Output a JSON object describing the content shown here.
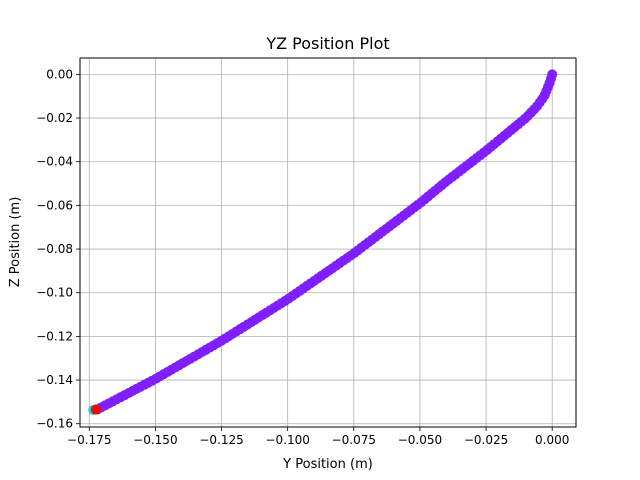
{
  "chart_data": {
    "type": "scatter",
    "title": "YZ Position Plot",
    "xlabel": "Y Position (m)",
    "ylabel": "Z Position (m)",
    "xlim": [
      -0.1785,
      0.009
    ],
    "ylim": [
      -0.1615,
      0.0075
    ],
    "xticks": [
      -0.175,
      -0.15,
      -0.125,
      -0.1,
      -0.075,
      -0.05,
      -0.025,
      0.0
    ],
    "xtick_labels": [
      "−0.175",
      "−0.150",
      "−0.125",
      "−0.100",
      "−0.075",
      "−0.050",
      "−0.025",
      "0.000"
    ],
    "yticks": [
      0.0,
      -0.02,
      -0.04,
      -0.06,
      -0.08,
      -0.1,
      -0.12,
      -0.14,
      -0.16
    ],
    "ytick_labels": [
      "0.00",
      "−0.02",
      "−0.04",
      "−0.06",
      "−0.08",
      "−0.10",
      "−0.12",
      "−0.14",
      "−0.16"
    ],
    "grid": true,
    "legend": "none",
    "point_color": "#7f1fff",
    "start_marker_color": "#31c9c9",
    "end_marker_color": "#ff0000",
    "path_knots": [
      [
        0.0,
        0.0
      ],
      [
        -0.001,
        -0.004
      ],
      [
        -0.003,
        -0.01
      ],
      [
        -0.006,
        -0.015
      ],
      [
        -0.01,
        -0.02
      ],
      [
        -0.015,
        -0.025
      ],
      [
        -0.025,
        -0.035
      ],
      [
        -0.04,
        -0.049
      ],
      [
        -0.05,
        -0.059
      ],
      [
        -0.075,
        -0.082
      ],
      [
        -0.1,
        -0.103
      ],
      [
        -0.125,
        -0.122
      ],
      [
        -0.15,
        -0.1395
      ],
      [
        -0.172,
        -0.1535
      ]
    ],
    "point_count": 130,
    "start_point": [
      -0.1735,
      -0.1537
    ],
    "end_point": [
      -0.1725,
      -0.1535
    ]
  }
}
